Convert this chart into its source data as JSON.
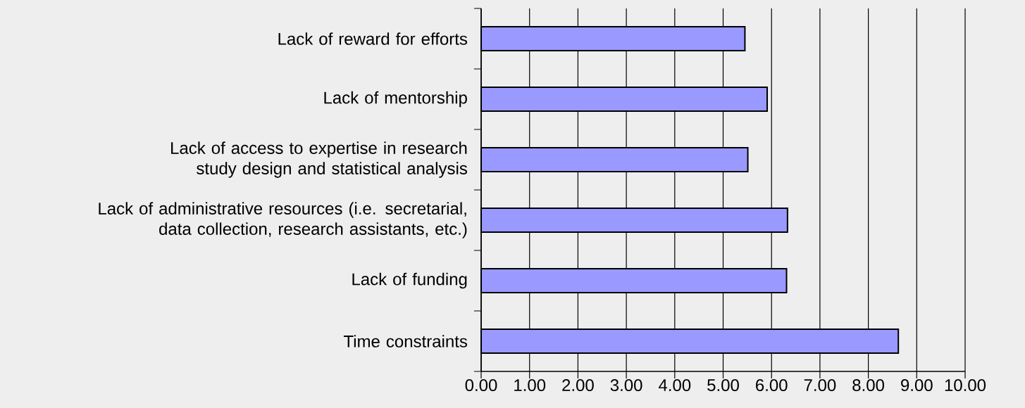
{
  "chart_data": {
    "type": "bar",
    "orientation": "horizontal",
    "categories": [
      "Lack of reward for efforts",
      "Lack of mentorship",
      "Lack of access to expertise in research study design and statistical analysis",
      "Lack of administrative resources (i.e. secretarial, data collection, research assistants, etc.)",
      "Lack of funding",
      "Time constraints"
    ],
    "values": [
      5.45,
      5.91,
      5.51,
      6.33,
      6.31,
      8.62
    ],
    "color": "#9999ff",
    "xlim": [
      0,
      10
    ],
    "xticks": [
      {
        "value": 0,
        "label": "0.00"
      },
      {
        "value": 1,
        "label": "1.00"
      },
      {
        "value": 2,
        "label": "2.00"
      },
      {
        "value": 3,
        "label": "3.00"
      },
      {
        "value": 4,
        "label": "4.00"
      },
      {
        "value": 5,
        "label": "5.00"
      },
      {
        "value": 6,
        "label": "6.00"
      },
      {
        "value": 7,
        "label": "7.00"
      },
      {
        "value": 8,
        "label": "8.00"
      },
      {
        "value": 9,
        "label": "9.00"
      },
      {
        "value": 10,
        "label": "10.00"
      }
    ],
    "grid": "x"
  }
}
